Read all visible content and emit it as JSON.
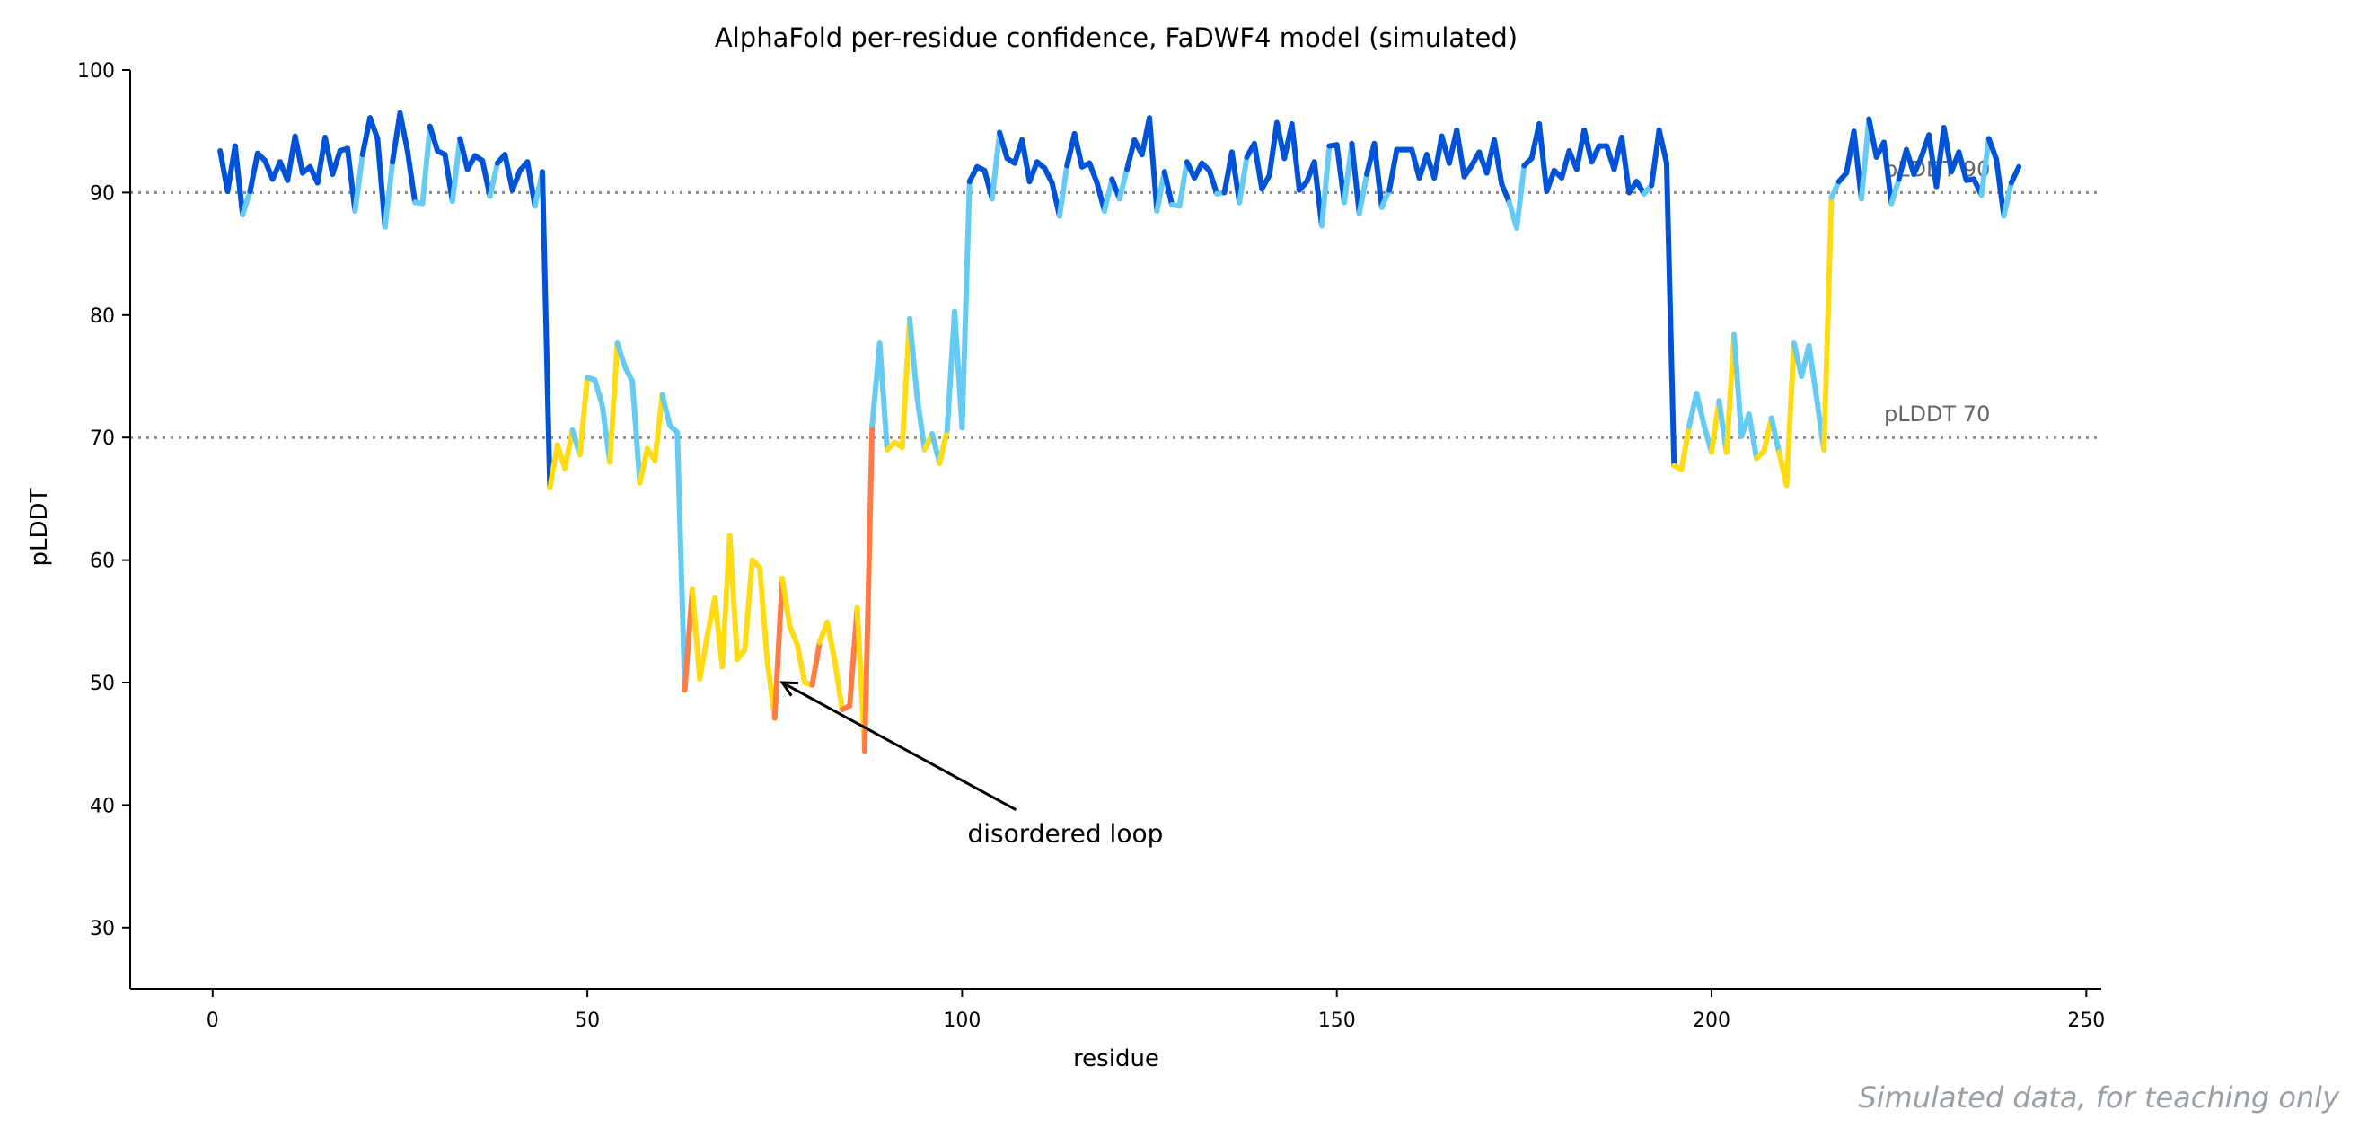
{
  "chart_data": {
    "type": "line",
    "title": "AlphaFold per-residue confidence, FaDWF4 model (simulated)",
    "xlabel": "residue",
    "ylabel": "pLDDT",
    "xlim": [
      -11,
      252
    ],
    "ylim": [
      25,
      100
    ],
    "xticks": [
      0,
      50,
      100,
      150,
      200,
      250
    ],
    "yticks": [
      30,
      40,
      50,
      60,
      70,
      80,
      90,
      100
    ],
    "grid": false,
    "reference_lines": [
      {
        "y": 90,
        "label": "pLDDT 90",
        "style": "dotted",
        "color": "#888888"
      },
      {
        "y": 70,
        "label": "pLDDT 70",
        "style": "dotted",
        "color": "#888888"
      }
    ],
    "color_bands": [
      {
        "min": 90,
        "color": "#0053D6"
      },
      {
        "min": 70,
        "color": "#65CBF3"
      },
      {
        "min": 50,
        "color": "#FFDB13"
      },
      {
        "min": 0,
        "color": "#FF7D45"
      }
    ],
    "annotations": [
      {
        "text": "disordered loop",
        "xy": [
          76,
          50
        ],
        "xytext": [
          100,
          38
        ]
      }
    ],
    "watermark": "Simulated data, for teaching only",
    "residue_start": 1,
    "values": [
      93.4,
      90.1,
      93.8,
      88.2,
      90.1,
      93.2,
      92.6,
      91.1,
      92.5,
      91.0,
      94.6,
      91.6,
      92.1,
      90.8,
      94.5,
      91.5,
      93.4,
      93.6,
      88.5,
      93.1,
      96.1,
      94.4,
      87.2,
      92.5,
      96.5,
      93.4,
      89.2,
      89.1,
      95.4,
      93.4,
      93.1,
      89.3,
      94.4,
      91.9,
      93.0,
      92.6,
      89.7,
      92.4,
      93.1,
      90.2,
      91.8,
      92.5,
      88.9,
      91.7,
      65.9,
      69.4,
      67.5,
      70.6,
      68.6,
      74.9,
      74.7,
      72.6,
      68.0,
      77.7,
      75.8,
      74.6,
      66.3,
      69.1,
      68.1,
      73.5,
      71.0,
      70.4,
      49.4,
      57.6,
      50.3,
      53.8,
      56.9,
      51.3,
      62.0,
      51.9,
      52.7,
      60.0,
      59.4,
      51.8,
      47.1,
      58.5,
      54.6,
      53.1,
      50.0,
      49.8,
      53.3,
      54.9,
      51.8,
      47.8,
      48.1,
      56.1,
      44.4,
      71.0,
      77.7,
      69.0,
      69.6,
      69.2,
      79.7,
      73.3,
      69.0,
      70.3,
      67.9,
      70.6,
      80.3,
      70.8,
      90.9,
      92.1,
      91.8,
      89.5,
      94.9,
      92.8,
      92.4,
      94.3,
      90.9,
      92.5,
      92.0,
      90.8,
      88.1,
      92.2,
      94.8,
      92.1,
      92.4,
      90.8,
      88.5,
      91.1,
      89.5,
      91.9,
      94.3,
      93.1,
      96.1,
      88.5,
      91.7,
      89.0,
      88.9,
      92.5,
      91.2,
      92.4,
      91.8,
      89.9,
      90.0,
      93.3,
      89.2,
      92.9,
      94.0,
      90.3,
      91.4,
      95.7,
      92.8,
      95.6,
      90.2,
      90.9,
      92.5,
      87.3,
      93.8,
      93.9,
      89.2,
      94.0,
      88.3,
      91.5,
      94.0,
      88.8,
      90.2,
      93.5,
      93.5,
      93.5,
      91.2,
      93.1,
      91.2,
      94.6,
      92.4,
      95.1,
      91.3,
      92.2,
      93.3,
      91.6,
      94.3,
      90.7,
      89.2,
      87.1,
      92.2,
      92.8,
      95.6,
      90.1,
      91.8,
      91.2,
      93.4,
      91.9,
      95.1,
      92.5,
      93.8,
      93.8,
      91.9,
      94.5,
      90.0,
      90.9,
      89.9,
      90.6,
      95.1,
      92.4,
      67.7,
      67.4,
      70.9,
      73.6,
      71.0,
      68.8,
      73.0,
      68.8,
      78.4,
      70.1,
      71.9,
      68.3,
      68.9,
      71.6,
      68.8,
      66.1,
      77.7,
      75.0,
      77.5,
      73.3,
      69.0,
      89.6,
      90.9,
      91.6,
      95.0,
      89.5,
      96.0,
      92.9,
      94.1,
      89.1,
      91.1,
      93.5,
      91.5,
      92.9,
      94.7,
      90.5,
      95.3,
      91.7,
      93.3,
      91.0,
      91.1,
      89.8,
      94.4,
      92.7,
      88.1,
      90.8,
      92.1
    ]
  }
}
